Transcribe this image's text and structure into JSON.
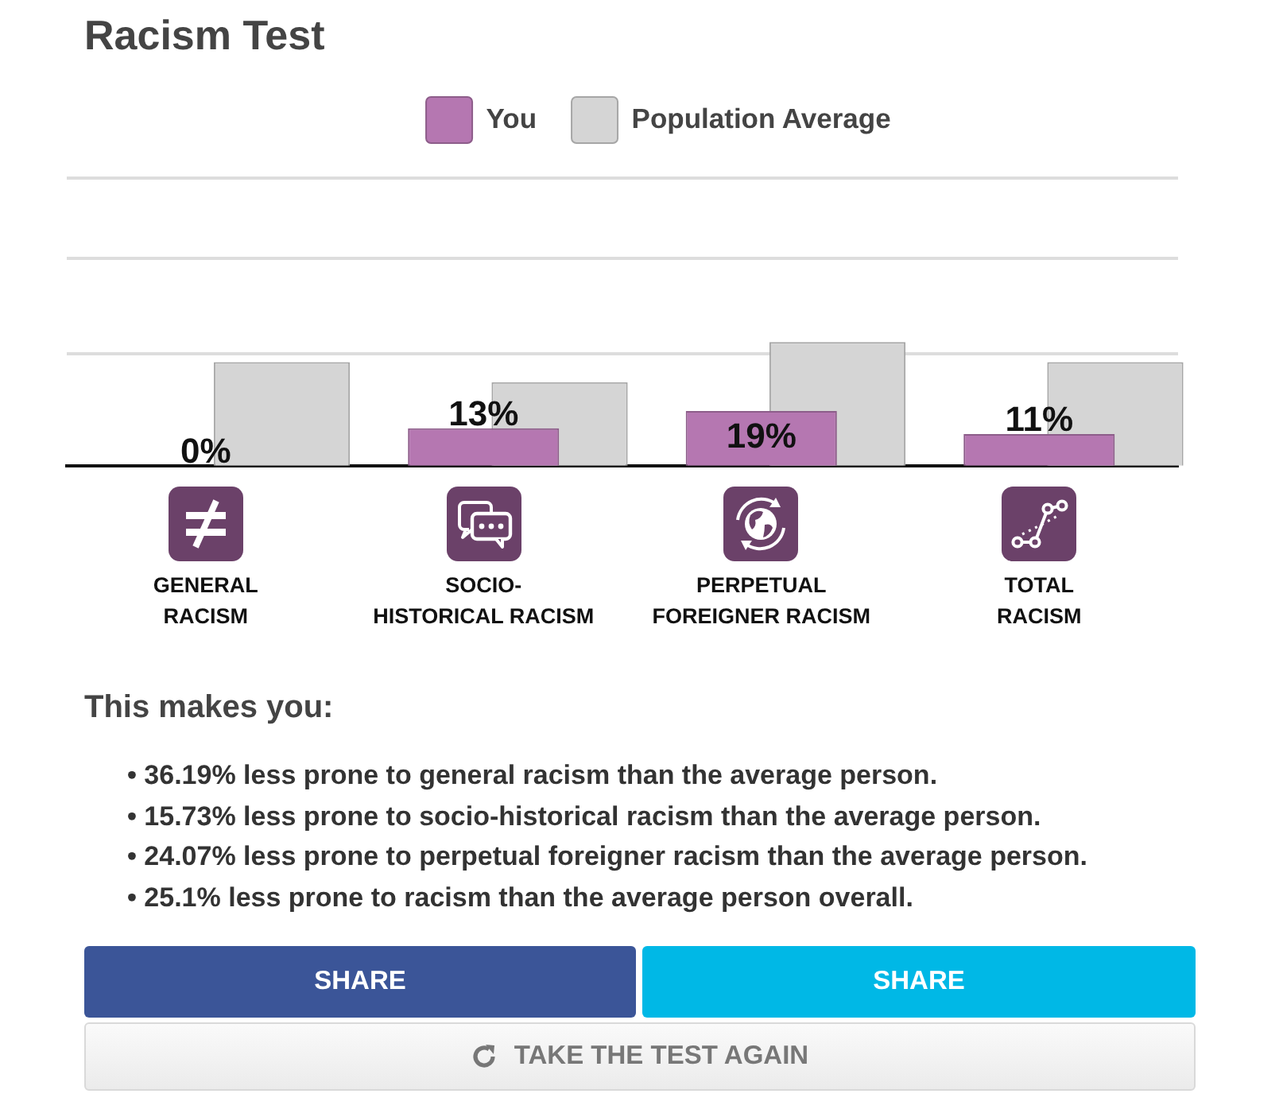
{
  "chart_data": {
    "type": "bar",
    "title": "Racism Test",
    "categories": [
      "GENERAL RACISM",
      "SOCIO-HISTORICAL RACISM",
      "PERPETUAL FOREIGNER RACISM",
      "TOTAL RACISM"
    ],
    "series": [
      {
        "name": "You",
        "color": "#b577b1",
        "values": [
          0,
          13,
          19,
          11
        ],
        "value_labels": [
          "0%",
          "13%",
          "19%",
          "11%"
        ]
      },
      {
        "name": "Population Average",
        "color": "#d5d5d5",
        "values": [
          36,
          29,
          43,
          36
        ]
      }
    ],
    "ylim": [
      0,
      100
    ],
    "yticks": [
      {
        "value": 39,
        "label": null
      },
      {
        "value": 72,
        "label": null
      },
      {
        "value": 100,
        "label": null
      }
    ],
    "grid": "y",
    "legend": "top",
    "tick_labels": "x",
    "annotations": [
      "This makes you:",
      "• 36.19% less prone to general racism than the average person.",
      "• 15.73% less prone to socio-historical racism than the average person.",
      "• 24.07% less prone to perpetual foreigner racism than the average person.",
      "• 25.1% less prone to racism than the average person overall.",
      "SHARE",
      "SHARE",
      "TAKE THE TEST AGAIN"
    ]
  }
}
